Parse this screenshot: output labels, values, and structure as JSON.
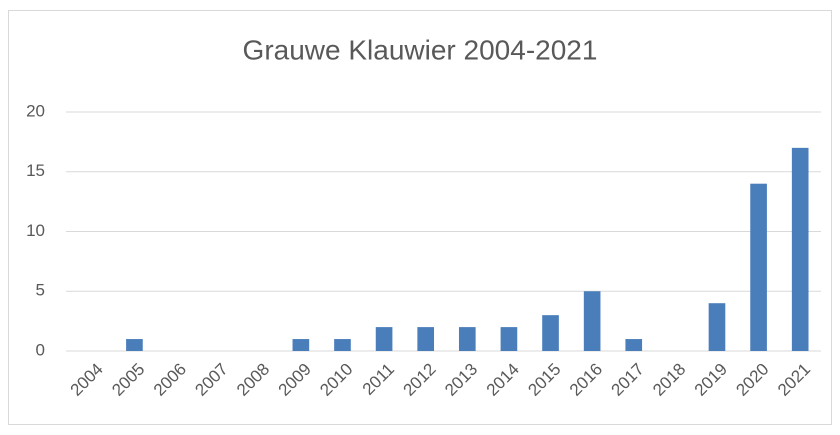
{
  "chart_data": {
    "type": "bar",
    "title": "Grauwe Klauwier 2004-2021",
    "categories": [
      "2004",
      "2005",
      "2006",
      "2007",
      "2008",
      "2009",
      "2010",
      "2011",
      "2012",
      "2013",
      "2014",
      "2015",
      "2016",
      "2017",
      "2018",
      "2019",
      "2020",
      "2021"
    ],
    "values": [
      0,
      1,
      0,
      0,
      0,
      1,
      1,
      2,
      2,
      2,
      2,
      3,
      5,
      1,
      0,
      4,
      14,
      17
    ],
    "color": "#4a7ebb",
    "ylim": [
      0,
      20
    ],
    "yticks": [
      0,
      5,
      10,
      15,
      20
    ],
    "grid": true
  }
}
